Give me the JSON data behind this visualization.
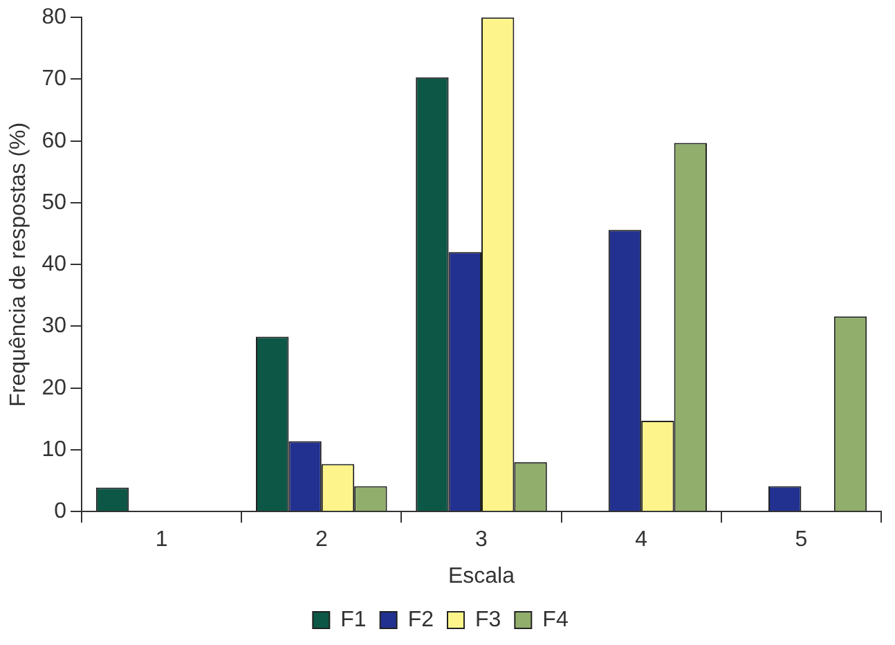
{
  "chart_data": {
    "type": "bar",
    "xlabel": "Escala",
    "ylabel": "Frequência de respostas (%)",
    "categories": [
      "1",
      "2",
      "3",
      "4",
      "5"
    ],
    "series": [
      {
        "name": "F1",
        "color": "#0d5746",
        "values": [
          3.9,
          28.3,
          70.3,
          null,
          null
        ]
      },
      {
        "name": "F2",
        "color": "#22318f",
        "values": [
          null,
          11.4,
          42,
          45.6,
          4.1
        ]
      },
      {
        "name": "F3",
        "color": "#fdf58c",
        "values": [
          null,
          7.7,
          80,
          14.7,
          null
        ]
      },
      {
        "name": "F4",
        "color": "#91ae6c",
        "values": [
          null,
          4.1,
          8,
          59.7,
          31.6
        ]
      }
    ],
    "ylim": [
      0,
      80
    ],
    "yticks": [
      0,
      10,
      20,
      30,
      40,
      50,
      60,
      70,
      80
    ],
    "grid": false,
    "legend": "bottom"
  }
}
